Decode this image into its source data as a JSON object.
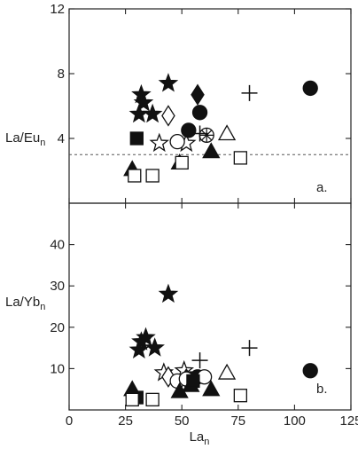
{
  "chart_data": [
    {
      "type": "scatter",
      "panel_label": "a.",
      "ylabel": "La/Eu",
      "ylabel_subscript": "n",
      "xlabel": "",
      "xlim": [
        0,
        125
      ],
      "ylim": [
        0,
        12
      ],
      "yticks": [
        4,
        8,
        12
      ],
      "xticks": [
        0,
        25,
        50,
        75,
        100,
        125
      ],
      "show_x_tick_labels": false,
      "reference_line": {
        "y": 3,
        "style": "dashed"
      },
      "grid": false,
      "series": [
        {
          "marker": "star-filled",
          "points": [
            [
              31,
              5.5
            ],
            [
              32,
              6.7
            ],
            [
              33,
              6.2
            ],
            [
              37,
              5.5
            ],
            [
              44,
              7.4
            ]
          ]
        },
        {
          "marker": "star-open",
          "points": [
            [
              40,
              3.7
            ],
            [
              52,
              3.7
            ]
          ]
        },
        {
          "marker": "diamond-filled",
          "points": [
            [
              57,
              6.7
            ]
          ]
        },
        {
          "marker": "diamond-open",
          "points": [
            [
              44,
              5.4
            ]
          ]
        },
        {
          "marker": "circle-filled",
          "points": [
            [
              53,
              4.5
            ],
            [
              58,
              5.6
            ],
            [
              107,
              7.1
            ]
          ]
        },
        {
          "marker": "circle-open",
          "points": [
            [
              48,
              3.8
            ]
          ]
        },
        {
          "marker": "circle-cross-open",
          "points": [
            [
              61,
              4.2
            ]
          ]
        },
        {
          "marker": "triangle-filled",
          "points": [
            [
              28,
              2.1
            ],
            [
              49,
              2.5
            ],
            [
              63,
              3.2
            ]
          ]
        },
        {
          "marker": "triangle-open",
          "points": [
            [
              70,
              4.3
            ]
          ]
        },
        {
          "marker": "square-filled",
          "points": [
            [
              30,
              4.0
            ]
          ]
        },
        {
          "marker": "square-open",
          "points": [
            [
              29,
              1.7
            ],
            [
              37,
              1.7
            ],
            [
              50,
              2.5
            ],
            [
              76,
              2.8
            ]
          ]
        },
        {
          "marker": "plus",
          "points": [
            [
              58,
              4.3
            ],
            [
              80,
              6.8
            ]
          ]
        }
      ]
    },
    {
      "type": "scatter",
      "panel_label": "b.",
      "ylabel": "La/Yb",
      "ylabel_subscript": "n",
      "xlabel": "La",
      "xlabel_subscript": "n",
      "xlim": [
        0,
        125
      ],
      "ylim": [
        0,
        50
      ],
      "yticks": [
        10,
        20,
        30,
        40
      ],
      "xticks": [
        0,
        25,
        50,
        75,
        100,
        125
      ],
      "tick_labels_x": [
        "0",
        "25",
        "50",
        "75",
        "100",
        "125"
      ],
      "grid": false,
      "series": [
        {
          "marker": "star-filled",
          "points": [
            [
              31,
              14.5
            ],
            [
              32,
              16.5
            ],
            [
              34,
              17.5
            ],
            [
              38,
              15
            ],
            [
              44,
              28
            ]
          ]
        },
        {
          "marker": "star-open",
          "points": [
            [
              42,
              9
            ],
            [
              51,
              9.5
            ]
          ]
        },
        {
          "marker": "diamond-filled",
          "points": [
            [
              52,
              7.5
            ]
          ]
        },
        {
          "marker": "diamond-open",
          "points": [
            [
              44,
              8
            ]
          ]
        },
        {
          "marker": "circle-filled",
          "points": [
            [
              54,
              7.5
            ],
            [
              57,
              8
            ],
            [
              107,
              9.5
            ]
          ]
        },
        {
          "marker": "circle-open",
          "points": [
            [
              48,
              7
            ],
            [
              52,
              7.5
            ],
            [
              60,
              8
            ]
          ]
        },
        {
          "marker": "triangle-filled",
          "points": [
            [
              28,
              5
            ],
            [
              49,
              4.5
            ],
            [
              54,
              6
            ],
            [
              63,
              5
            ]
          ]
        },
        {
          "marker": "triangle-open",
          "points": [
            [
              70,
              9
            ]
          ]
        },
        {
          "marker": "square-filled",
          "points": [
            [
              30,
              3
            ],
            [
              55,
              7
            ]
          ]
        },
        {
          "marker": "square-open",
          "points": [
            [
              28,
              2.5
            ],
            [
              37,
              2.5
            ],
            [
              76,
              3.5
            ]
          ]
        },
        {
          "marker": "plus",
          "points": [
            [
              58,
              12
            ],
            [
              80,
              15
            ]
          ]
        }
      ]
    }
  ],
  "figure": {
    "tick_labels_y_top": [
      "4",
      "8",
      "12"
    ],
    "tick_labels_y_bottom": [
      "10",
      "20",
      "30",
      "40"
    ]
  },
  "colors": {
    "ink": "#111111",
    "axis": "#222222",
    "background": "#ffffff"
  }
}
